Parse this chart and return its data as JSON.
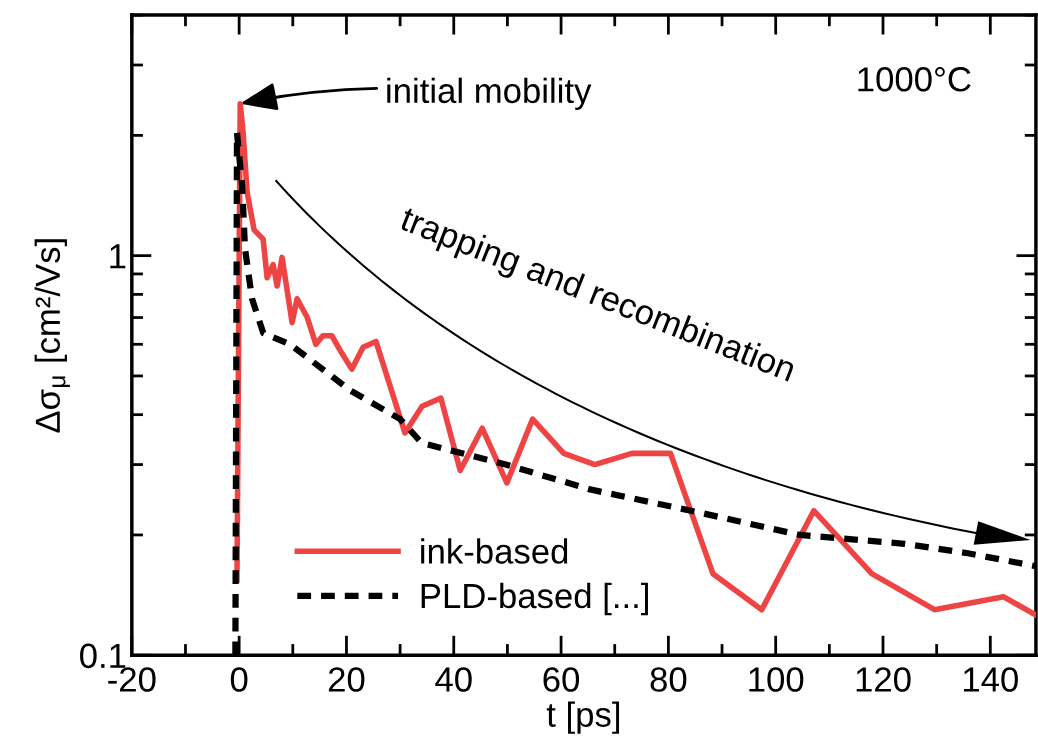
{
  "chart_data": {
    "type": "line",
    "xlabel": "t [ps]",
    "ylabel": "Δσ$_{μ}$ [cm²/Vs]",
    "log": "y",
    "xlim": [
      -20,
      148.5
    ],
    "xticks": [
      -20,
      0,
      20,
      40,
      60,
      80,
      100,
      120,
      140
    ],
    "ylim": [
      0.1,
      4
    ],
    "yticks": [
      0.1,
      1
    ],
    "grid": false,
    "legend": "bottom left",
    "series": [
      {
        "name": "ink-based",
        "color": "#ef4444",
        "line_style": "solid",
        "x": [
          -0.4,
          0.2,
          0.74,
          1.49,
          2.79,
          4.47,
          5.21,
          6.33,
          7.08,
          8.0,
          9.87,
          10.8,
          12.7,
          14.3,
          15.6,
          17.3,
          18.8,
          21.0,
          23.1,
          25.5,
          30.9,
          34.1,
          37.6,
          41.2,
          45.3,
          49.9,
          54.7,
          60.5,
          66.3,
          73.2,
          80.4,
          88.3,
          97.4,
          107.1,
          117.9,
          129.6,
          142.5,
          148.5
        ],
        "values": [
          0.154,
          2.4,
          2.03,
          1.44,
          1.16,
          1.1,
          0.88,
          0.95,
          0.84,
          0.99,
          0.68,
          0.78,
          0.7,
          0.6,
          0.63,
          0.63,
          0.58,
          0.52,
          0.59,
          0.61,
          0.36,
          0.42,
          0.44,
          0.29,
          0.37,
          0.27,
          0.39,
          0.32,
          0.3,
          0.32,
          0.32,
          0.16,
          0.13,
          0.23,
          0.16,
          0.13,
          0.14,
          0.126
        ]
      },
      {
        "name": "PLD-based [...]",
        "color": "#000000",
        "line_style": "dashed",
        "x": [
          -0.7,
          -0.4,
          0.56,
          1.1,
          2.4,
          4.5,
          9.5,
          20.7,
          30.0,
          34.0,
          49.7,
          65.4,
          84.2,
          104.5,
          124.0,
          135.8,
          148.5
        ],
        "values": [
          0.1,
          2.03,
          1.49,
          1.04,
          0.78,
          0.64,
          0.6,
          0.46,
          0.39,
          0.34,
          0.3,
          0.26,
          0.23,
          0.2,
          0.19,
          0.18,
          0.167
        ]
      }
    ],
    "annotations": [
      {
        "text": "initial mobility",
        "x": 0.2,
        "y": 2.4
      },
      "trapping and recombination",
      "1000°C"
    ]
  }
}
